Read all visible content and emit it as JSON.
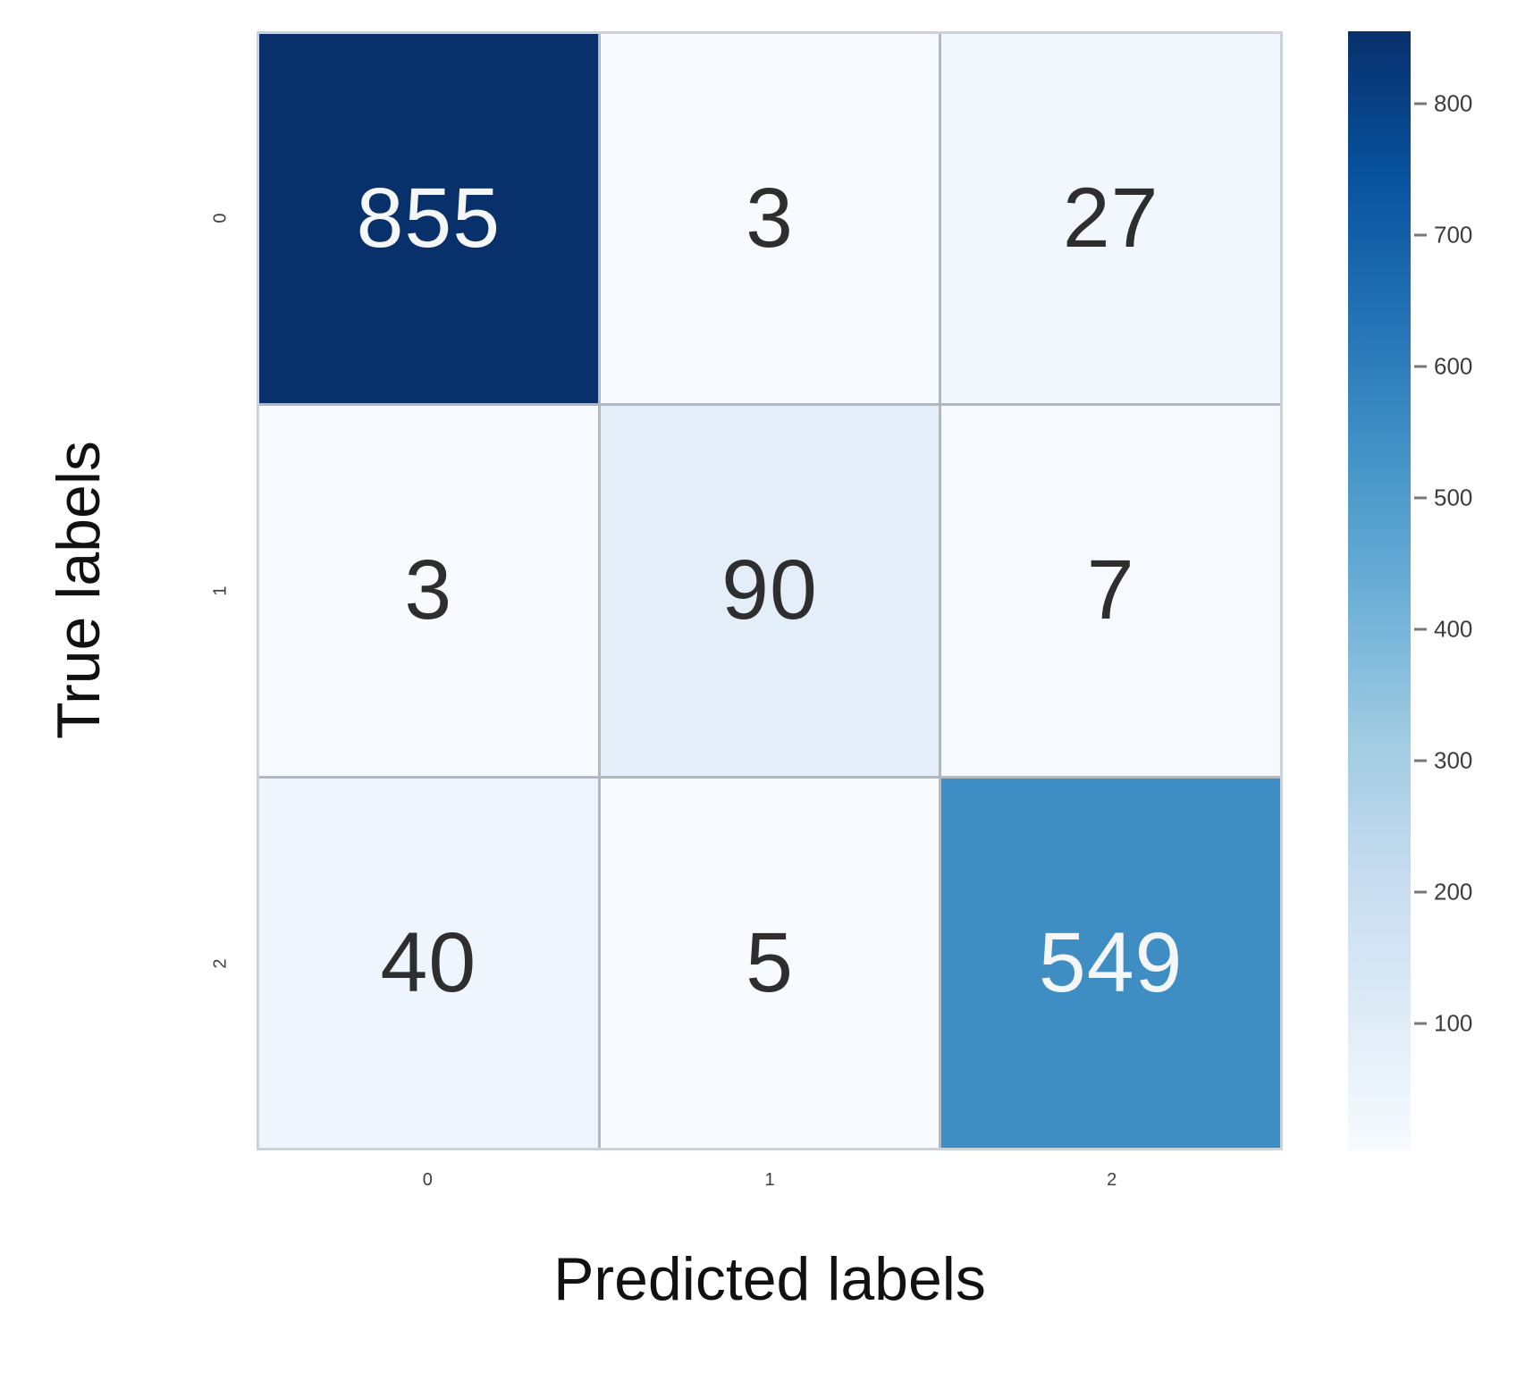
{
  "figure": {
    "background": "#ffffff"
  },
  "chart_data": {
    "type": "heatmap",
    "title": "",
    "xlabel": "Predicted labels",
    "ylabel": "True labels",
    "x_tick_labels": [
      "0",
      "1",
      "2"
    ],
    "y_tick_labels": [
      "0",
      "1",
      "2"
    ],
    "matrix": [
      [
        855,
        3,
        27
      ],
      [
        3,
        90,
        7
      ],
      [
        40,
        5,
        549
      ]
    ],
    "vmin": 3,
    "vmax": 855,
    "colormap_name": "Blues",
    "colormap_stops_dark_to_light": [
      "#08306b",
      "#08519c",
      "#2171b5",
      "#4292c6",
      "#6baed6",
      "#9ecae1",
      "#c6dbef",
      "#deebf7",
      "#f7fbff"
    ],
    "colorbar_ticks": [
      800,
      700,
      600,
      500,
      400,
      300,
      200,
      100
    ],
    "legend_position": "right-colorbar",
    "grid_on": true,
    "grid_line_color": "#b2b8c0",
    "border_color": "#ccd2da",
    "annotation_color_light_cells": "#2e2e2e",
    "annotation_color_dark_cells": "#f5f6f8",
    "tick_label_color": "#3d3d3d",
    "axis_label_color": "#111111"
  }
}
